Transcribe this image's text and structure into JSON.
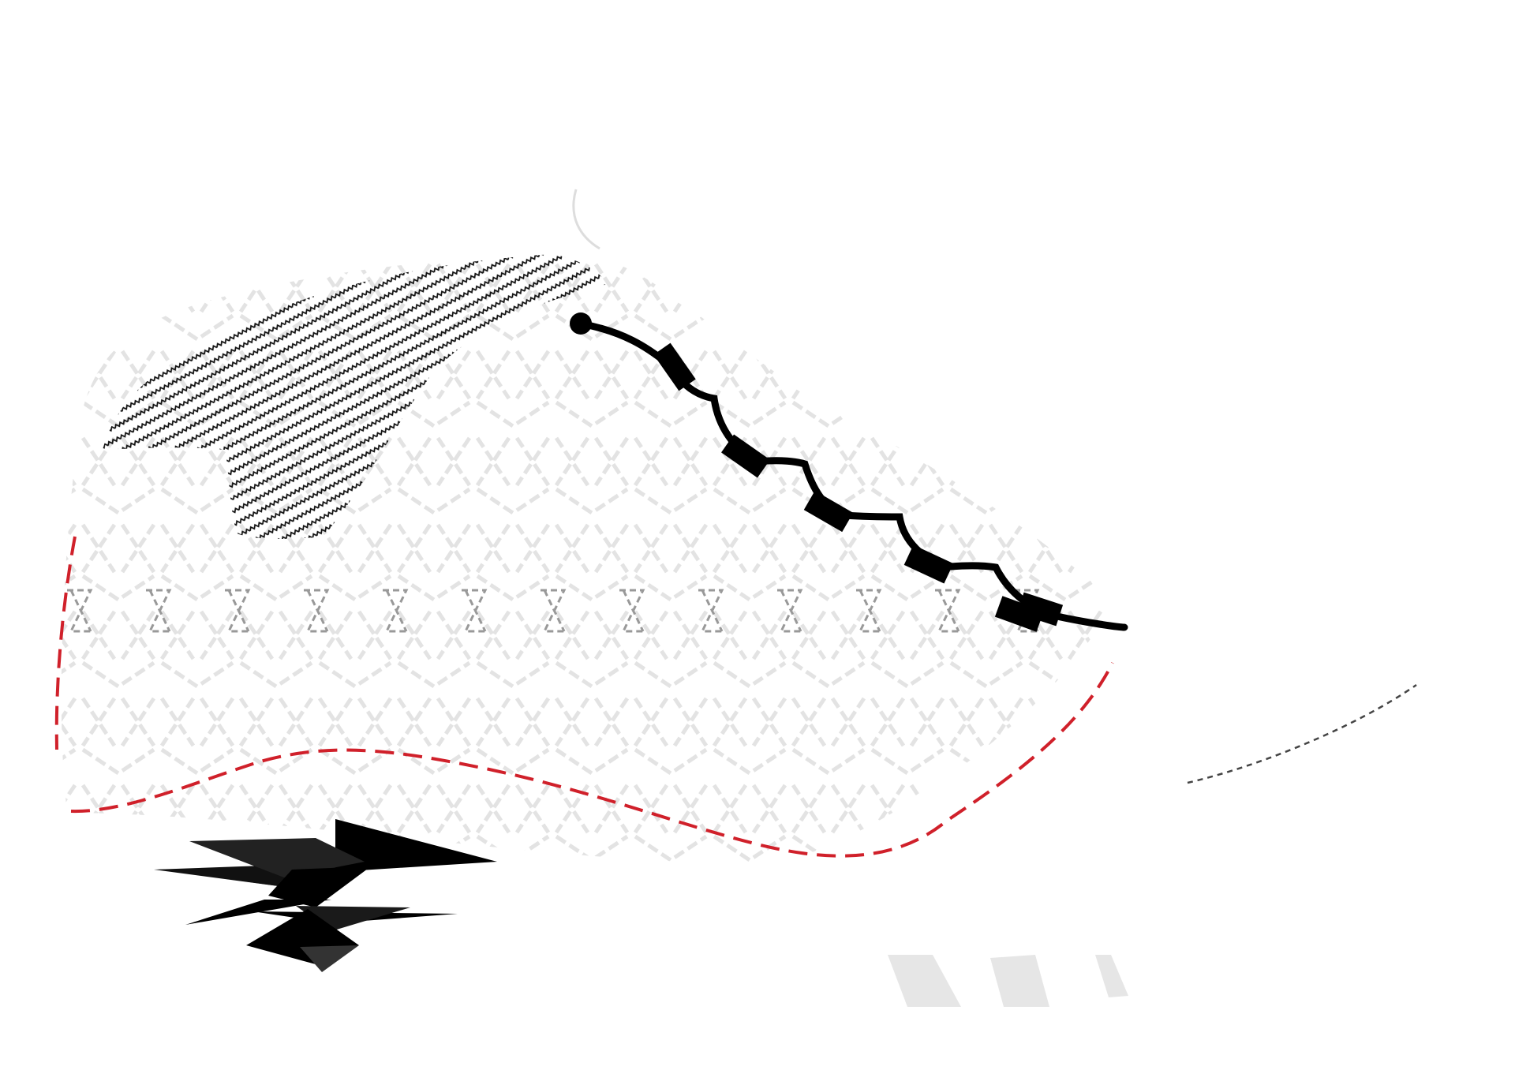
{
  "illustration": {
    "subject": "sneaker-side-view",
    "colors": {
      "background": "#ffffff",
      "mesh_pattern": "#e3e3e3",
      "mesh_pattern_dark": "#999999",
      "knit_stripes": "#111111",
      "lace": "#000000",
      "stitch_line": "#d0202a",
      "heel_stitch": "#444444",
      "midsole_bars": "#e6e6e6",
      "logo": "#000000",
      "collar_outline": "#dddddd"
    },
    "lace_eyelets_count": 6,
    "midsole_bars_count": 3
  }
}
